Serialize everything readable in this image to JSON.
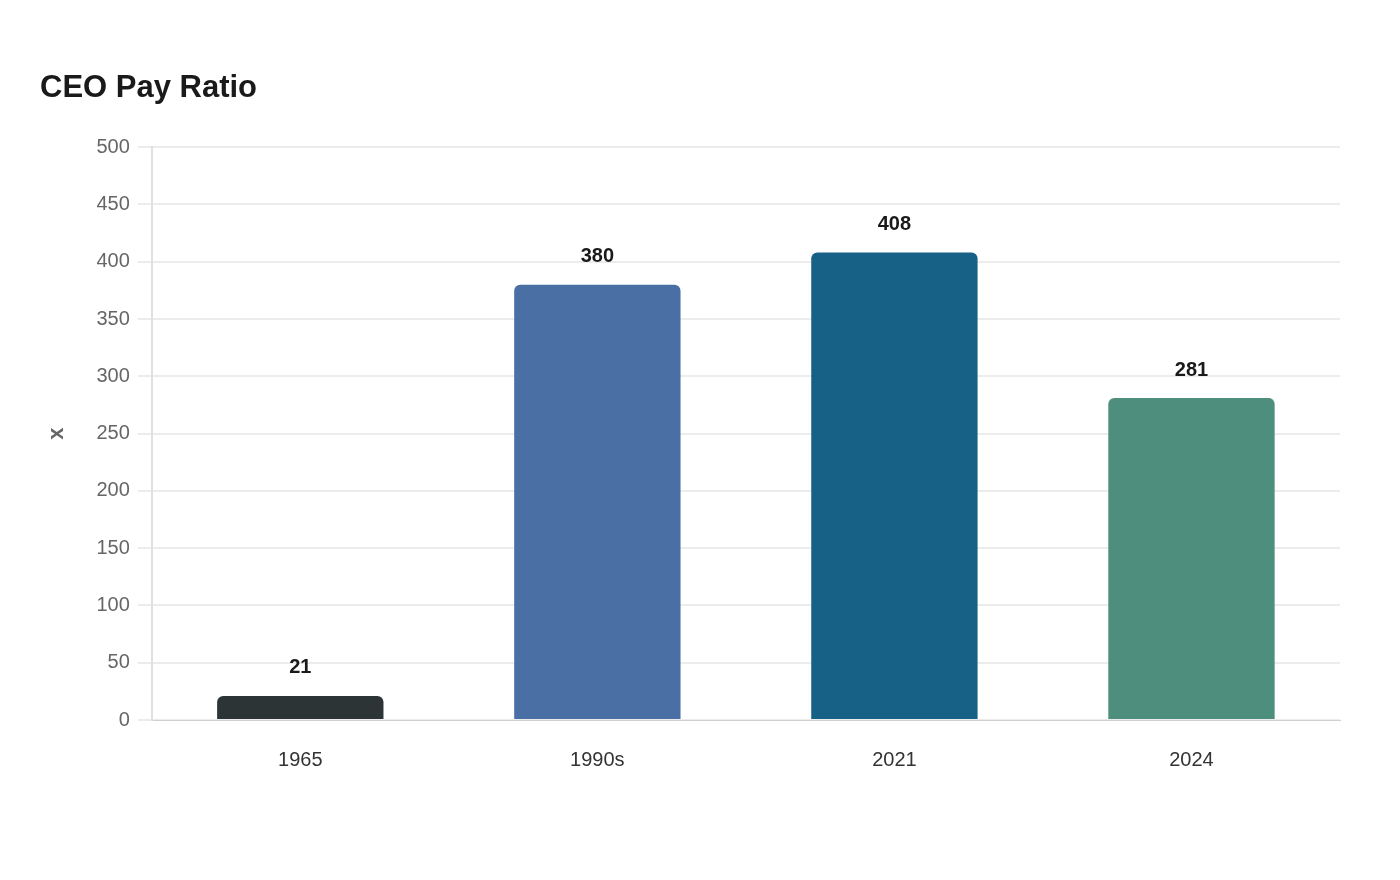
{
  "chart_data": {
    "type": "bar",
    "title": "CEO Pay Ratio",
    "ylabel": "x",
    "categories": [
      "1965",
      "1990s",
      "2021",
      "2024"
    ],
    "values": [
      21,
      380,
      408,
      281
    ],
    "colors": [
      "#2d3436",
      "#4a6fa5",
      "#186186",
      "#4e8e7c"
    ],
    "ylim": [
      0,
      500
    ],
    "yticks": [
      0,
      50,
      100,
      150,
      200,
      250,
      300,
      350,
      400,
      450,
      500
    ],
    "grid": "y",
    "data_labels": true,
    "legend": false
  }
}
